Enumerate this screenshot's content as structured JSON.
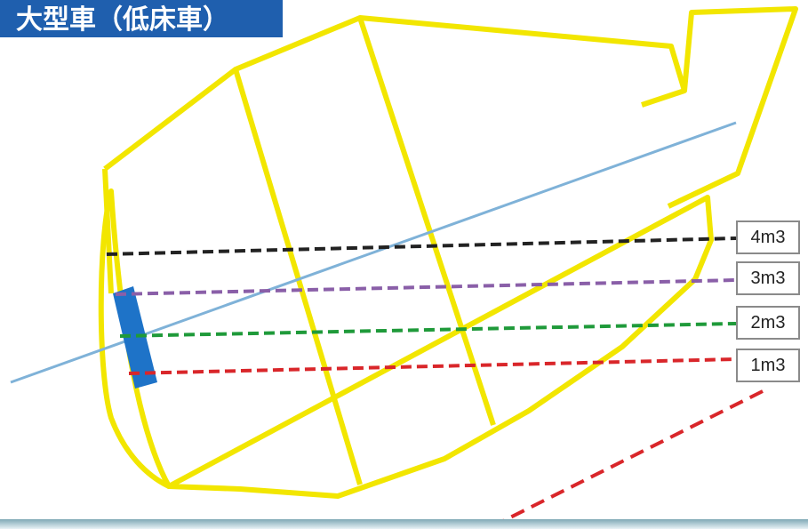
{
  "title": "大型車（低床車）",
  "volume_levels": [
    {
      "label": "4m3",
      "color": "#222222"
    },
    {
      "label": "3m3",
      "color": "#8a5fa8"
    },
    {
      "label": "2m3",
      "color": "#1f9a3a"
    },
    {
      "label": "1m3",
      "color": "#d9262a"
    }
  ],
  "colors": {
    "drum_outline": "#f2e600",
    "axis_line": "#7fb2d8",
    "chute": "#1e73c8",
    "banner": "#1f5fae",
    "pointer_arrow": "#d9262a"
  }
}
